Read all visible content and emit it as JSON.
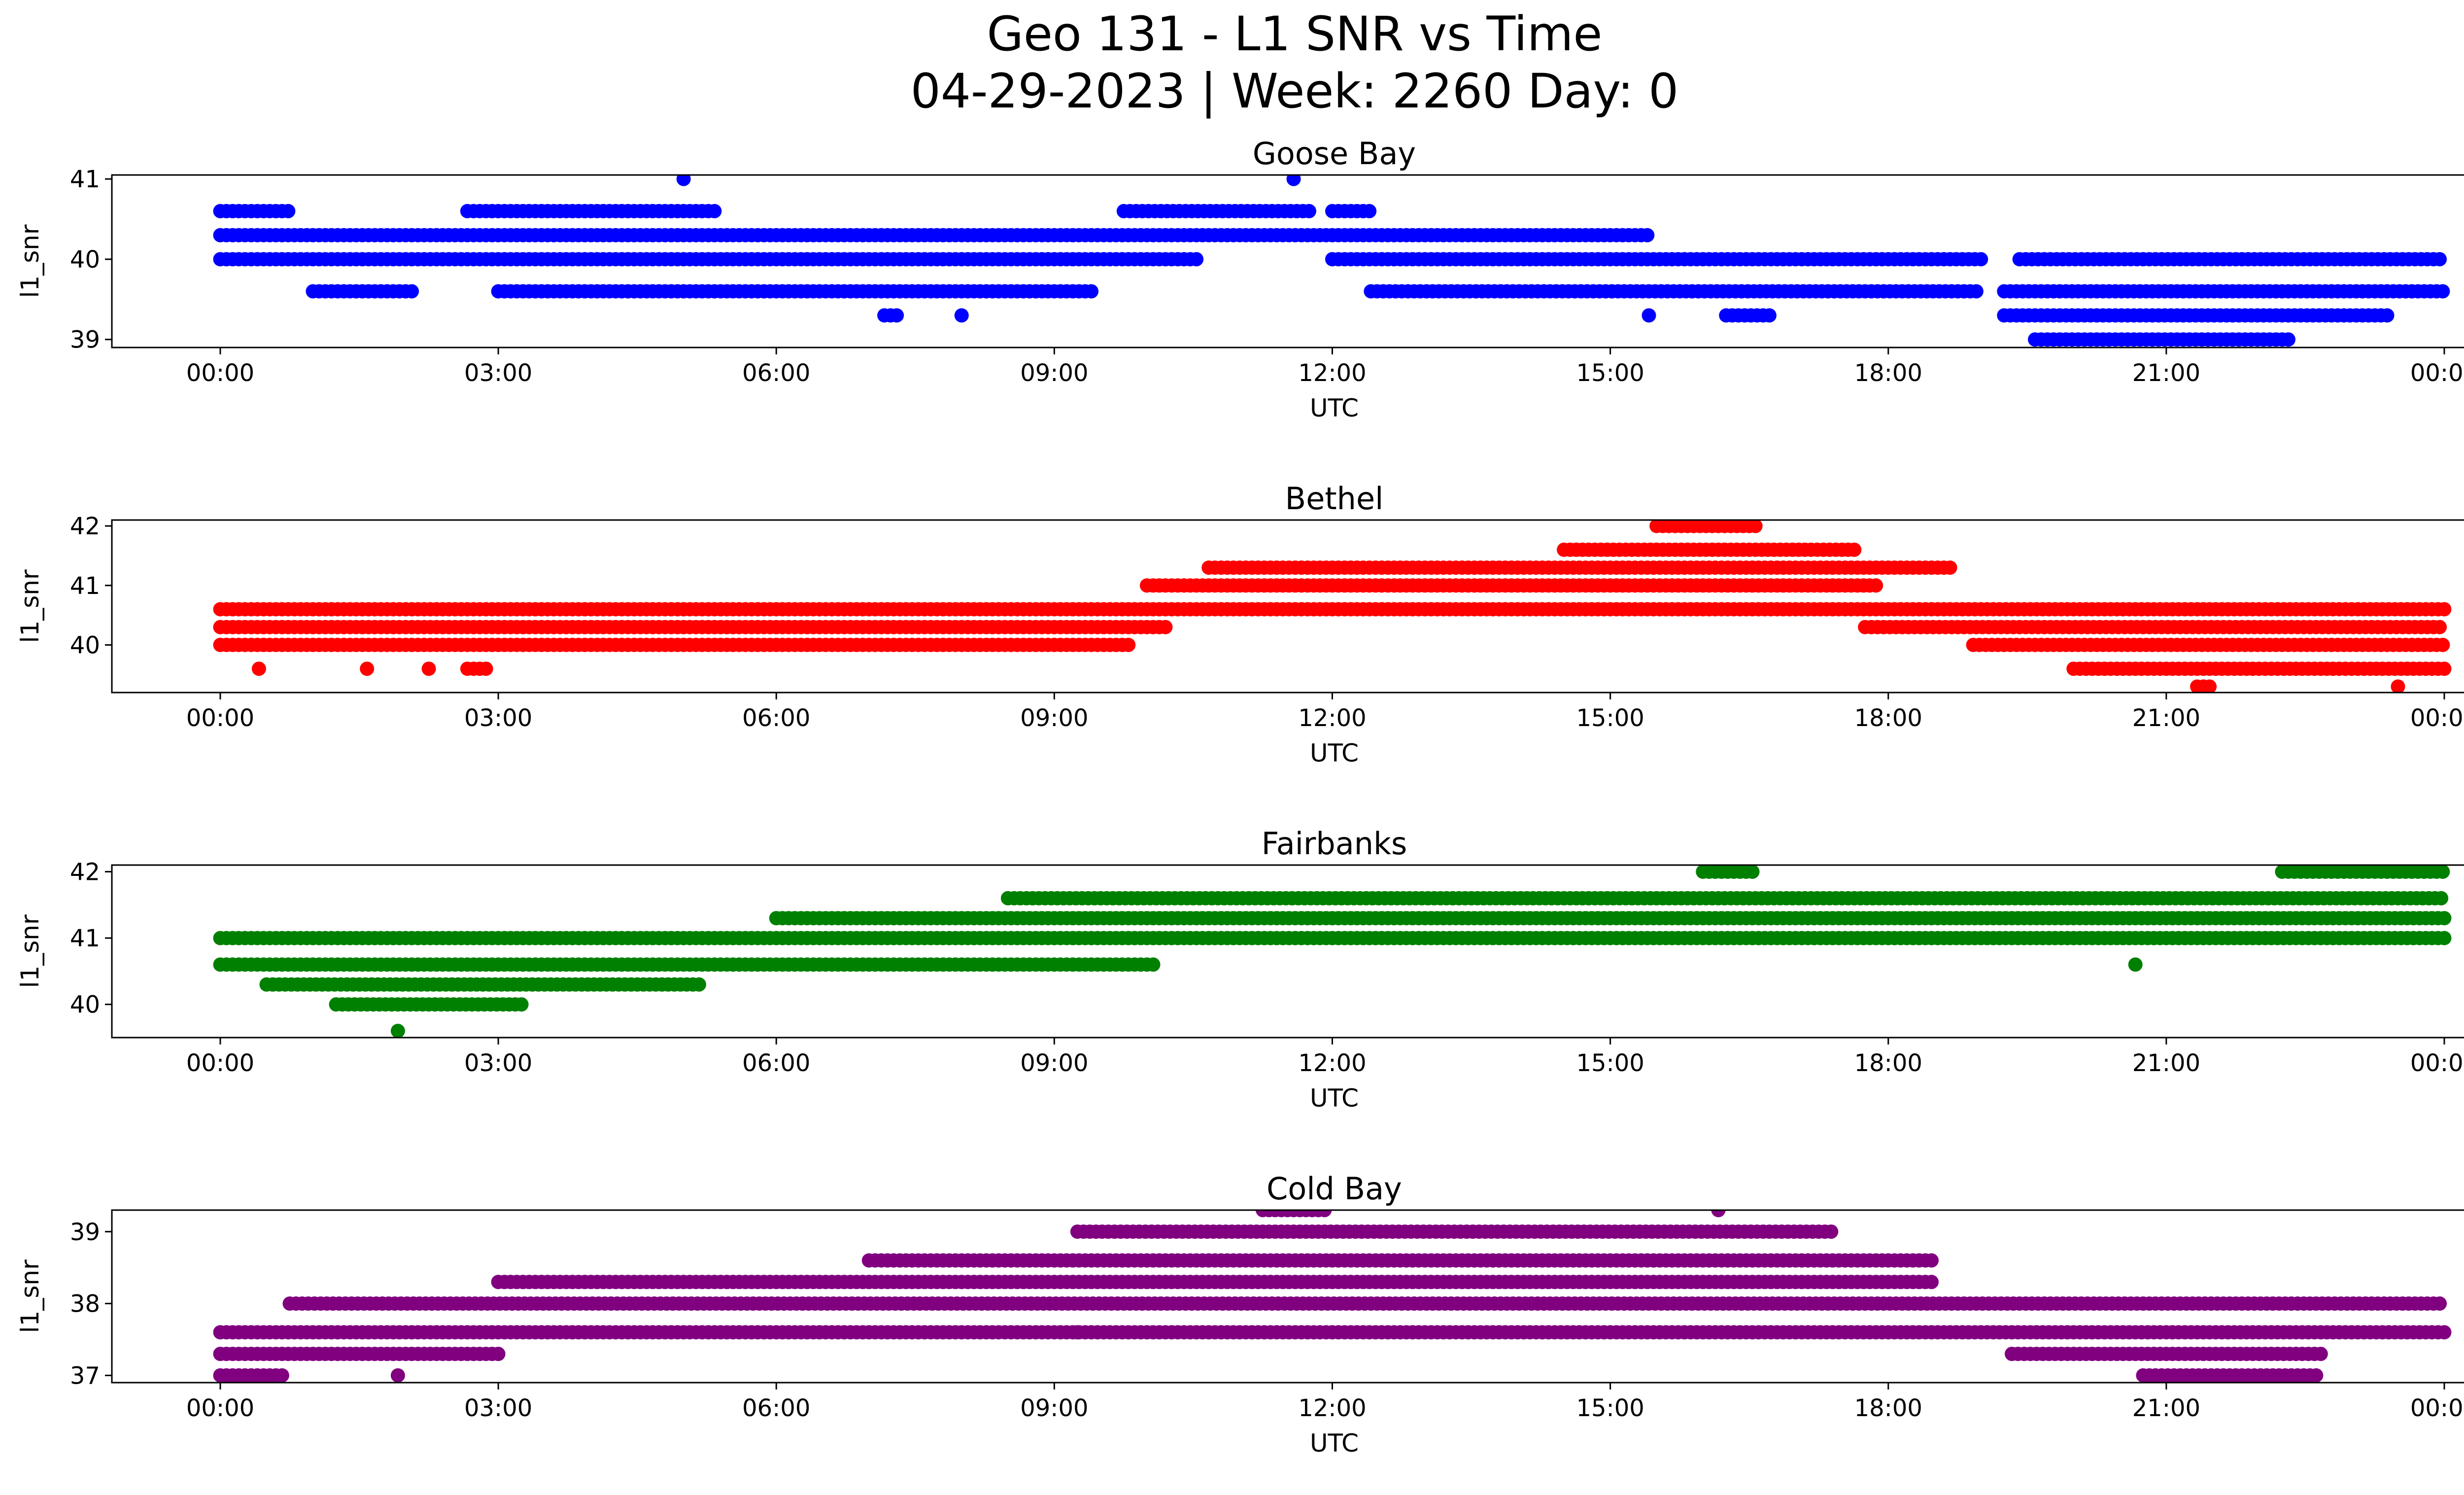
{
  "figure": {
    "title_line1": "Geo 131 - L1 SNR vs Time",
    "title_line2": "04-29-2023 | Week: 2260 Day: 0"
  },
  "chart_data": [
    {
      "type": "scatter",
      "title": "Goose Bay",
      "xlabel": "UTC",
      "ylabel": "l1_snr",
      "color": "#0000ff",
      "xlim": [
        "00:00",
        "24:00"
      ],
      "xticks": [
        "00:00",
        "03:00",
        "06:00",
        "09:00",
        "12:00",
        "15:00",
        "18:00",
        "21:00",
        "00:00"
      ],
      "ylim": [
        38.9,
        41.05
      ],
      "yticks": [
        "39",
        "40",
        "41"
      ],
      "grid": false,
      "points": [
        {
          "x": "00:00-11:58",
          "y": 40.3
        },
        {
          "x": "12:00-15:25",
          "y": 40.3
        },
        {
          "x": "00:00-10:32",
          "y": 40.0
        },
        {
          "x": "12:00-19:00",
          "y": 40.0
        },
        {
          "x": "19:25-24:00",
          "y": 40.0
        },
        {
          "x": "00:00-00:45",
          "y": 40.6
        },
        {
          "x": "02:40-05:20",
          "y": 40.6
        },
        {
          "x": "09:45-11:45",
          "y": 40.6
        },
        {
          "x": "12:00-12:25",
          "y": 40.6
        },
        {
          "x": "01:00-02:05",
          "y": 39.6
        },
        {
          "x": "03:00-09:25",
          "y": 39.6
        },
        {
          "x": "12:25-19:00",
          "y": 39.6
        },
        {
          "x": "19:15-24:00",
          "y": 39.6
        },
        {
          "x": "19:15-23:25",
          "y": 39.3
        },
        {
          "x": "19:35-22:20",
          "y": 39.0
        },
        {
          "x": "05:00",
          "y": 41.0
        },
        {
          "x": "11:35",
          "y": 41.0
        },
        {
          "x": "07:10-07:20",
          "y": 39.3
        },
        {
          "x": "08:00",
          "y": 39.3
        },
        {
          "x": "15:25",
          "y": 39.3
        },
        {
          "x": "16:15-16:45",
          "y": 39.3
        }
      ]
    },
    {
      "type": "scatter",
      "title": "Bethel",
      "xlabel": "UTC",
      "ylabel": "l1_snr",
      "color": "#ff0000",
      "xlim": [
        "00:00",
        "24:00"
      ],
      "xticks": [
        "00:00",
        "03:00",
        "06:00",
        "09:00",
        "12:00",
        "15:00",
        "18:00",
        "21:00",
        "00:00"
      ],
      "ylim": [
        39.2,
        42.1
      ],
      "yticks": [
        "40",
        "41",
        "42"
      ],
      "grid": false,
      "points": [
        {
          "x": "00:00-10:15",
          "y": 40.3
        },
        {
          "x": "17:45-24:00",
          "y": 40.3
        },
        {
          "x": "00:00-24:00",
          "y": 40.6
        },
        {
          "x": "00:00-09:50",
          "y": 40.0
        },
        {
          "x": "18:55-24:00",
          "y": 40.0
        },
        {
          "x": "10:00-17:55",
          "y": 41.0
        },
        {
          "x": "10:40-18:40",
          "y": 41.3
        },
        {
          "x": "14:30-17:40",
          "y": 41.6
        },
        {
          "x": "20:00-24:00",
          "y": 39.6
        },
        {
          "x": "15:30-16:35",
          "y": 42.0
        },
        {
          "x": "21:20-21:30",
          "y": 39.3
        },
        {
          "x": "23:30",
          "y": 39.3
        },
        {
          "x": "00:25",
          "y": 39.6
        },
        {
          "x": "01:35",
          "y": 39.6
        },
        {
          "x": "02:15",
          "y": 39.6
        },
        {
          "x": "02:40-02:55",
          "y": 39.6
        }
      ]
    },
    {
      "type": "scatter",
      "title": "Fairbanks",
      "xlabel": "UTC",
      "ylabel": "l1_snr",
      "color": "#008000",
      "xlim": [
        "00:00",
        "24:00"
      ],
      "xticks": [
        "00:00",
        "03:00",
        "06:00",
        "09:00",
        "12:00",
        "15:00",
        "18:00",
        "21:00",
        "00:00"
      ],
      "ylim": [
        39.5,
        42.1
      ],
      "yticks": [
        "40",
        "41",
        "42"
      ],
      "grid": false,
      "points": [
        {
          "x": "00:00-10:05",
          "y": 40.6
        },
        {
          "x": "00:00-24:00",
          "y": 41.0
        },
        {
          "x": "06:00-24:00",
          "y": 41.3
        },
        {
          "x": "08:30-24:00",
          "y": 41.6
        },
        {
          "x": "00:30-05:10",
          "y": 40.3
        },
        {
          "x": "01:15-03:15",
          "y": 40.0
        },
        {
          "x": "16:00-16:35",
          "y": 42.0
        },
        {
          "x": "22:15-24:00",
          "y": 42.0
        },
        {
          "x": "01:55",
          "y": 39.6
        },
        {
          "x": "20:40",
          "y": 40.6
        }
      ]
    },
    {
      "type": "scatter",
      "title": "Cold Bay",
      "xlabel": "UTC",
      "ylabel": "l1_snr",
      "color": "#800080",
      "xlim": [
        "00:00",
        "24:00"
      ],
      "xticks": [
        "00:00",
        "03:00",
        "06:00",
        "09:00",
        "12:00",
        "15:00",
        "18:00",
        "21:00",
        "00:00"
      ],
      "ylim": [
        36.9,
        39.3
      ],
      "yticks": [
        "37",
        "38",
        "39"
      ],
      "grid": false,
      "points": [
        {
          "x": "00:00-24:00",
          "y": 37.6
        },
        {
          "x": "00:00-03:00",
          "y": 37.3
        },
        {
          "x": "00:00-00:40",
          "y": 37.0
        },
        {
          "x": "00:45-24:00",
          "y": 38.0
        },
        {
          "x": "03:00-18:30",
          "y": 38.3
        },
        {
          "x": "07:00-18:30",
          "y": 38.6
        },
        {
          "x": "09:15-17:25",
          "y": 39.0
        },
        {
          "x": "19:20-22:40",
          "y": 37.3
        },
        {
          "x": "20:45-22:40",
          "y": 37.0
        },
        {
          "x": "11:15-11:55",
          "y": 39.3
        },
        {
          "x": "16:10",
          "y": 39.3
        },
        {
          "x": "01:55",
          "y": 37.0
        },
        {
          "x": "09:15",
          "y": 37.6
        }
      ]
    }
  ]
}
